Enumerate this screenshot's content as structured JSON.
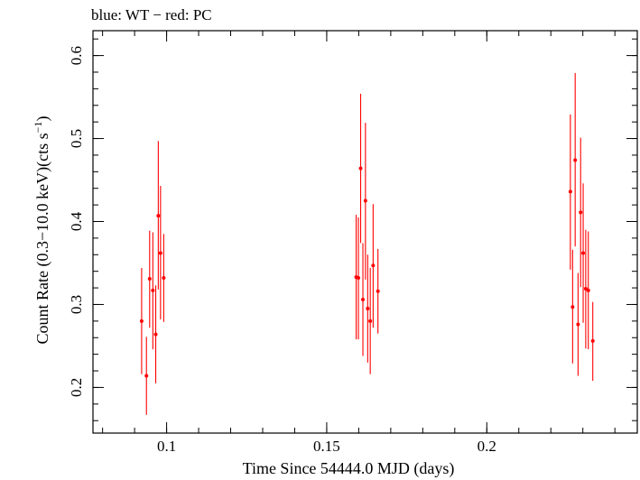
{
  "chart_data": {
    "type": "scatter",
    "title": "blue: WT − red: PC",
    "xlabel": "Time Since 54444.0 MJD (days)",
    "ylabel_main": "Count Rate (0.3−10.0 keV)(cts s",
    "ylabel_sup": "−1",
    "ylabel_close": ")",
    "xlim": [
      0.077,
      0.247
    ],
    "ylim": [
      0.145,
      0.63
    ],
    "x_ticks_major": [
      0.1,
      0.15,
      0.2
    ],
    "x_tick_labels": [
      "0.1",
      "0.15",
      "0.2"
    ],
    "y_ticks_major": [
      0.2,
      0.3,
      0.4,
      0.5,
      0.6
    ],
    "y_tick_labels": [
      "0.2",
      "0.3",
      "0.4",
      "0.5",
      "0.6"
    ],
    "x_minor_step": 0.01,
    "y_minor_step": 0.02,
    "grid": false,
    "series": [
      {
        "color": "#ff0000",
        "points": [
          {
            "x": 0.0922,
            "y": 0.28,
            "ylo": 0.216,
            "yhi": 0.344
          },
          {
            "x": 0.0937,
            "y": 0.214,
            "ylo": 0.167,
            "yhi": 0.261
          },
          {
            "x": 0.0947,
            "y": 0.331,
            "ylo": 0.272,
            "yhi": 0.389
          },
          {
            "x": 0.0957,
            "y": 0.317,
            "ylo": 0.246,
            "yhi": 0.387
          },
          {
            "x": 0.0966,
            "y": 0.264,
            "ylo": 0.205,
            "yhi": 0.323
          },
          {
            "x": 0.0974,
            "y": 0.407,
            "ylo": 0.318,
            "yhi": 0.497
          },
          {
            "x": 0.0981,
            "y": 0.362,
            "ylo": 0.282,
            "yhi": 0.443
          },
          {
            "x": 0.0991,
            "y": 0.332,
            "ylo": 0.279,
            "yhi": 0.385
          },
          {
            "x": 0.1592,
            "y": 0.333,
            "ylo": 0.258,
            "yhi": 0.408
          },
          {
            "x": 0.1599,
            "y": 0.332,
            "ylo": 0.258,
            "yhi": 0.405
          },
          {
            "x": 0.1606,
            "y": 0.464,
            "ylo": 0.374,
            "yhi": 0.554
          },
          {
            "x": 0.1613,
            "y": 0.306,
            "ylo": 0.238,
            "yhi": 0.374
          },
          {
            "x": 0.1621,
            "y": 0.425,
            "ylo": 0.33,
            "yhi": 0.519
          },
          {
            "x": 0.1628,
            "y": 0.295,
            "ylo": 0.23,
            "yhi": 0.36
          },
          {
            "x": 0.1636,
            "y": 0.28,
            "ylo": 0.216,
            "yhi": 0.344
          },
          {
            "x": 0.1645,
            "y": 0.347,
            "ylo": 0.272,
            "yhi": 0.421
          },
          {
            "x": 0.166,
            "y": 0.316,
            "ylo": 0.265,
            "yhi": 0.367
          },
          {
            "x": 0.2261,
            "y": 0.436,
            "ylo": 0.342,
            "yhi": 0.529
          },
          {
            "x": 0.2268,
            "y": 0.297,
            "ylo": 0.229,
            "yhi": 0.366
          },
          {
            "x": 0.2276,
            "y": 0.474,
            "ylo": 0.37,
            "yhi": 0.579
          },
          {
            "x": 0.2285,
            "y": 0.276,
            "ylo": 0.214,
            "yhi": 0.338
          },
          {
            "x": 0.2293,
            "y": 0.411,
            "ylo": 0.321,
            "yhi": 0.501
          },
          {
            "x": 0.2301,
            "y": 0.362,
            "ylo": 0.278,
            "yhi": 0.446
          },
          {
            "x": 0.2309,
            "y": 0.319,
            "ylo": 0.247,
            "yhi": 0.39
          },
          {
            "x": 0.2317,
            "y": 0.317,
            "ylo": 0.246,
            "yhi": 0.388
          },
          {
            "x": 0.2331,
            "y": 0.256,
            "ylo": 0.208,
            "yhi": 0.303
          }
        ]
      }
    ]
  }
}
